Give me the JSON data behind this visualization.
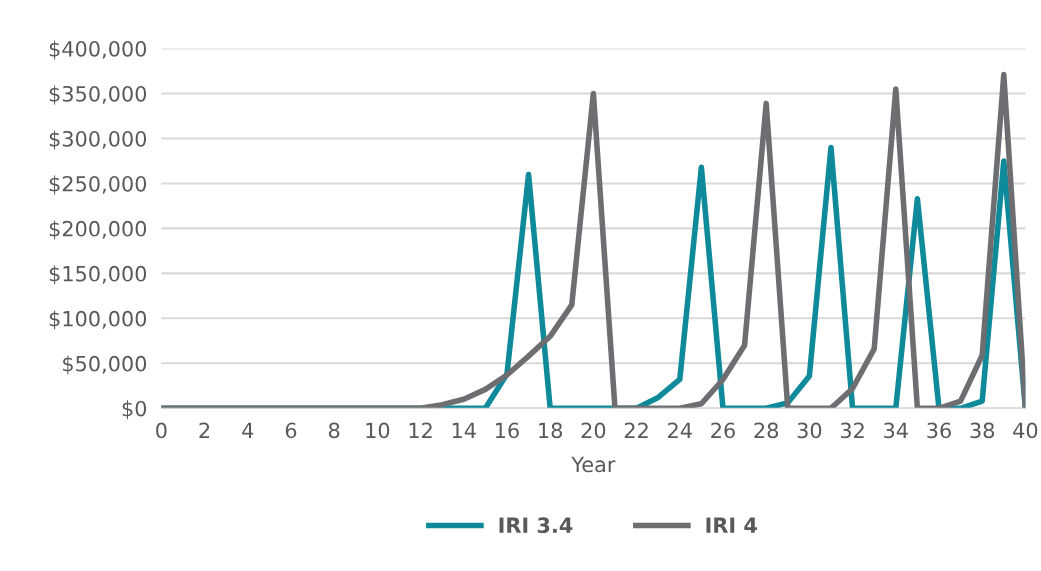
{
  "chart_data": {
    "type": "line",
    "xlabel": "Year",
    "x": [
      0,
      1,
      2,
      3,
      4,
      5,
      6,
      7,
      8,
      9,
      10,
      11,
      12,
      13,
      14,
      15,
      16,
      17,
      18,
      19,
      20,
      21,
      22,
      23,
      24,
      25,
      26,
      27,
      28,
      29,
      30,
      31,
      32,
      33,
      34,
      35,
      36,
      37,
      38,
      39,
      40
    ],
    "series": [
      {
        "name": "IRI 3.4",
        "color": "#0e8a9a",
        "values": [
          0,
          0,
          0,
          0,
          0,
          0,
          0,
          0,
          0,
          0,
          0,
          0,
          0,
          0,
          0,
          0,
          38000,
          260000,
          0,
          0,
          0,
          0,
          0,
          12000,
          32000,
          268000,
          0,
          0,
          0,
          6000,
          36000,
          290000,
          0,
          0,
          0,
          233000,
          0,
          0,
          8000,
          275000,
          0
        ]
      },
      {
        "name": "IRI 4",
        "color": "#6d6e71",
        "values": [
          0,
          0,
          0,
          0,
          0,
          0,
          0,
          0,
          0,
          0,
          0,
          0,
          0,
          4000,
          10000,
          21000,
          37000,
          58000,
          80000,
          115000,
          350000,
          0,
          0,
          0,
          0,
          5000,
          32000,
          70000,
          339000,
          0,
          0,
          0,
          22000,
          66000,
          355000,
          0,
          0,
          8000,
          59000,
          371000,
          0
        ]
      }
    ],
    "xlim": [
      0,
      40
    ],
    "xticks": [
      0,
      2,
      4,
      6,
      8,
      10,
      12,
      14,
      16,
      18,
      20,
      22,
      24,
      26,
      28,
      30,
      32,
      34,
      36,
      38,
      40
    ],
    "ylim": [
      0,
      400000
    ],
    "yticks": [
      {
        "value": 0,
        "label": "$0"
      },
      {
        "value": 50000,
        "label": "$50,000"
      },
      {
        "value": 100000,
        "label": "$100,000"
      },
      {
        "value": 150000,
        "label": "$150,000"
      },
      {
        "value": 200000,
        "label": "$200,000"
      },
      {
        "value": 250000,
        "label": "$250,000"
      },
      {
        "value": 300000,
        "label": "$300,000"
      },
      {
        "value": 350000,
        "label": "$350,000"
      },
      {
        "value": 400000,
        "label": "$400,000"
      }
    ],
    "grid": "y",
    "legend": "bottom",
    "marker": "none",
    "line_style": "solid"
  }
}
